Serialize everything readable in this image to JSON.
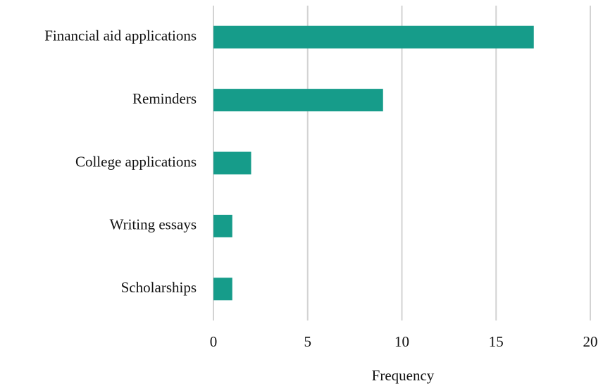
{
  "chart_data": {
    "type": "bar",
    "orientation": "horizontal",
    "categories": [
      "Financial aid applications",
      "Reminders",
      "College applications",
      "Writing essays",
      "Scholarships"
    ],
    "values": [
      17,
      9,
      2,
      1,
      1
    ],
    "color": "#169c8a",
    "x_label": "Frequency",
    "xlim": [
      0,
      20
    ],
    "xticks": [
      0,
      5,
      10,
      15,
      20
    ],
    "grid": true
  }
}
